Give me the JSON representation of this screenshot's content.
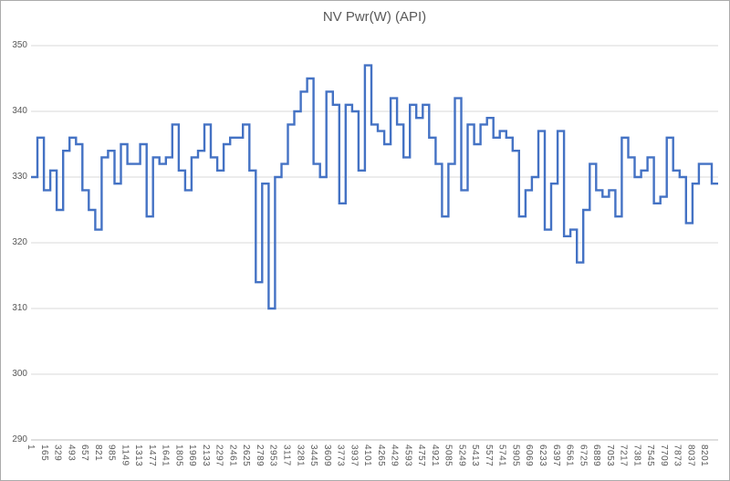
{
  "title": "NV Pwr(W) (API)",
  "colors": {
    "line": "#4472C4",
    "grid": "#D9D9D9",
    "axis_line": "#BFBFBF",
    "text": "#595959",
    "border": "#ABABAB",
    "background": "#FFFFFF"
  },
  "chart_data": {
    "type": "line",
    "style": "stepped",
    "title": "NV Pwr(W) (API)",
    "xlabel": "",
    "ylabel": "",
    "ylim": [
      290,
      350
    ],
    "y_ticks": [
      290,
      300,
      310,
      320,
      330,
      340,
      350
    ],
    "x_tick_labels": [
      "1",
      "165",
      "329",
      "493",
      "657",
      "821",
      "985",
      "1149",
      "1313",
      "1477",
      "1641",
      "1805",
      "1969",
      "2133",
      "2297",
      "2461",
      "2625",
      "2789",
      "2953",
      "3117",
      "3281",
      "3445",
      "3609",
      "3773",
      "3937",
      "4101",
      "4265",
      "4429",
      "4593",
      "4757",
      "4921",
      "5085",
      "5249",
      "5413",
      "5577",
      "5741",
      "5905",
      "6069",
      "6233",
      "6397",
      "6561",
      "6725",
      "6889",
      "7053",
      "7217",
      "7381",
      "7545",
      "7709",
      "7873",
      "8037",
      "8201"
    ],
    "x_tick_interval": 164,
    "x_axis_max": 8365,
    "grid": "horizontal",
    "legend": "none",
    "series": [
      {
        "name": "NV Pwr(W) (API)",
        "values": [
          330,
          336,
          328,
          331,
          325,
          334,
          336,
          335,
          328,
          325,
          322,
          333,
          334,
          329,
          335,
          332,
          332,
          335,
          324,
          333,
          332,
          333,
          338,
          331,
          328,
          333,
          334,
          338,
          333,
          331,
          335,
          336,
          336,
          338,
          331,
          314,
          329,
          310,
          330,
          332,
          338,
          340,
          343,
          345,
          332,
          330,
          343,
          341,
          326,
          341,
          340,
          331,
          347,
          338,
          337,
          335,
          342,
          338,
          333,
          341,
          339,
          341,
          336,
          332,
          324,
          332,
          342,
          328,
          338,
          335,
          338,
          339,
          336,
          337,
          336,
          334,
          324,
          328,
          330,
          337,
          322,
          329,
          337,
          321,
          322,
          317,
          325,
          332,
          328,
          327,
          328,
          324,
          336,
          333,
          330,
          331,
          333,
          326,
          327,
          336,
          331,
          330,
          323,
          329,
          332,
          332,
          329
        ]
      }
    ]
  }
}
